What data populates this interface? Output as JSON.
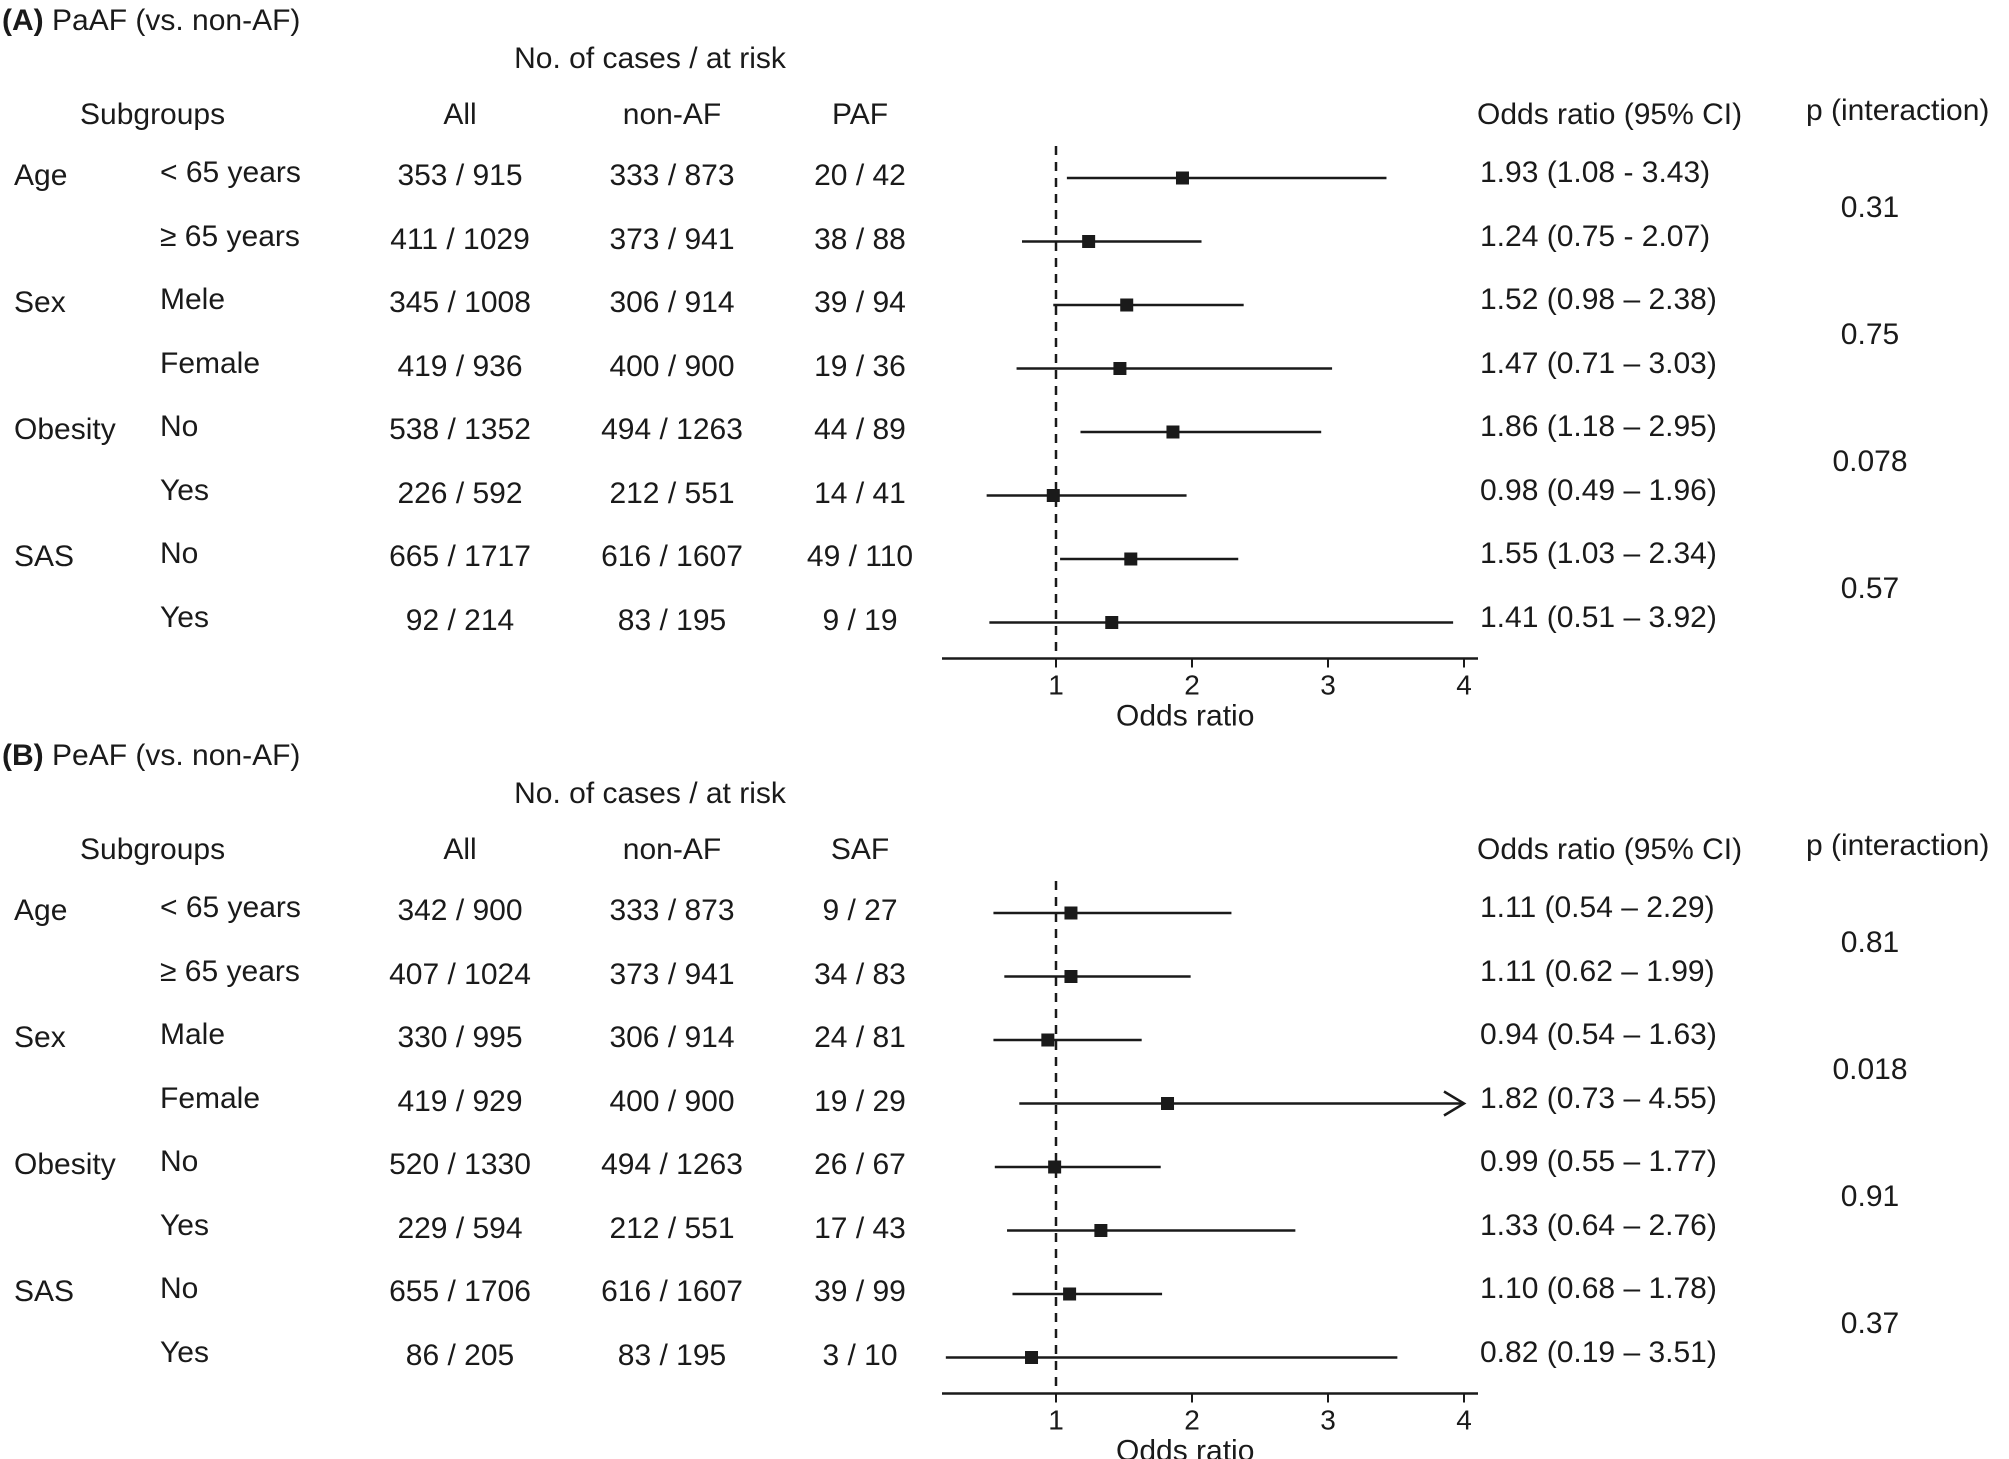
{
  "chart_data": [
    {
      "type": "forest",
      "panel_label": "(A)",
      "title": "PaAF (vs. non-AF)",
      "group_header": "No. of cases / at risk",
      "columns": {
        "subgroups": "Subgroups",
        "all": "All",
        "ref": "non-AF",
        "exp": "PAF",
        "or": "Odds ratio (95% CI)",
        "p": "p (interaction)"
      },
      "xlabel": "Odds ratio",
      "xlim": [
        0.15,
        4.15
      ],
      "xticks": [
        "1",
        "2",
        "3",
        "4"
      ],
      "reference_line": 1,
      "rows": [
        {
          "group": "Age",
          "sub": "< 65 years",
          "all": "353 / 915",
          "ref": "333 / 873",
          "exp": "20 / 42",
          "or_text": "1.93 (1.08 - 3.43)",
          "or": 1.93,
          "lo": 1.08,
          "hi": 3.43
        },
        {
          "group": "",
          "sub": "≥ 65 years",
          "all": "411 / 1029",
          "ref": "373 / 941",
          "exp": "38 / 88",
          "or_text": "1.24 (0.75 - 2.07)",
          "or": 1.24,
          "lo": 0.75,
          "hi": 2.07
        },
        {
          "group": "Sex",
          "sub": "Mele",
          "all": "345 / 1008",
          "ref": "306 / 914",
          "exp": "39 / 94",
          "or_text": "1.52 (0.98 – 2.38)",
          "or": 1.52,
          "lo": 0.98,
          "hi": 2.38
        },
        {
          "group": "",
          "sub": "Female",
          "all": "419 / 936",
          "ref": "400 / 900",
          "exp": "19 / 36",
          "or_text": "1.47 (0.71 – 3.03)",
          "or": 1.47,
          "lo": 0.71,
          "hi": 3.03
        },
        {
          "group": "Obesity",
          "sub": "No",
          "all": "538 / 1352",
          "ref": "494 / 1263",
          "exp": "44 / 89",
          "or_text": "1.86 (1.18 – 2.95)",
          "or": 1.86,
          "lo": 1.18,
          "hi": 2.95
        },
        {
          "group": "",
          "sub": "Yes",
          "all": "226 / 592",
          "ref": "212 / 551",
          "exp": "14 / 41",
          "or_text": "0.98 (0.49 – 1.96)",
          "or": 0.98,
          "lo": 0.49,
          "hi": 1.96
        },
        {
          "group": "SAS",
          "sub": "No",
          "all": "665 / 1717",
          "ref": "616 / 1607",
          "exp": "49 / 110",
          "or_text": "1.55 (1.03 – 2.34)",
          "or": 1.55,
          "lo": 1.03,
          "hi": 2.34
        },
        {
          "group": "",
          "sub": "Yes",
          "all": "92 / 214",
          "ref": "83 / 195",
          "exp": "9 / 19",
          "or_text": "1.41 (0.51 – 3.92)",
          "or": 1.41,
          "lo": 0.51,
          "hi": 3.92
        }
      ],
      "p_interaction": [
        "0.31",
        "0.75",
        "0.078",
        "0.57"
      ]
    },
    {
      "type": "forest",
      "panel_label": "(B)",
      "title": "PeAF (vs. non-AF)",
      "group_header": "No. of cases / at risk",
      "columns": {
        "subgroups": "Subgroups",
        "all": "All",
        "ref": "non-AF",
        "exp": "SAF",
        "or": "Odds ratio (95% CI)",
        "p": "p (interaction)"
      },
      "xlabel": "Odds ratio",
      "xlim": [
        0.15,
        4.15
      ],
      "xticks": [
        "1",
        "2",
        "3",
        "4"
      ],
      "reference_line": 1,
      "rows": [
        {
          "group": "Age",
          "sub": "< 65 years",
          "all": "342 / 900",
          "ref": "333 / 873",
          "exp": "9 / 27",
          "or_text": "1.11 (0.54 – 2.29)",
          "or": 1.11,
          "lo": 0.54,
          "hi": 2.29
        },
        {
          "group": "",
          "sub": "≥ 65 years",
          "all": "407 / 1024",
          "ref": "373 / 941",
          "exp": "34 / 83",
          "or_text": "1.11 (0.62 – 1.99)",
          "or": 1.11,
          "lo": 0.62,
          "hi": 1.99
        },
        {
          "group": "Sex",
          "sub": "Male",
          "all": "330 / 995",
          "ref": "306 / 914",
          "exp": "24 / 81",
          "or_text": "0.94 (0.54 – 1.63)",
          "or": 0.94,
          "lo": 0.54,
          "hi": 1.63
        },
        {
          "group": "",
          "sub": "Female",
          "all": "419 / 929",
          "ref": "400 / 900",
          "exp": "19 / 29",
          "or_text": "1.82 (0.73 – 4.55)",
          "or": 1.82,
          "lo": 0.73,
          "hi": 4.55,
          "arrow": true
        },
        {
          "group": "Obesity",
          "sub": "No",
          "all": "520 / 1330",
          "ref": "494 / 1263",
          "exp": "26 / 67",
          "or_text": "0.99 (0.55 – 1.77)",
          "or": 0.99,
          "lo": 0.55,
          "hi": 1.77
        },
        {
          "group": "",
          "sub": "Yes",
          "all": "229 / 594",
          "ref": "212 / 551",
          "exp": "17 / 43",
          "or_text": "1.33 (0.64 – 2.76)",
          "or": 1.33,
          "lo": 0.64,
          "hi": 2.76
        },
        {
          "group": "SAS",
          "sub": "No",
          "all": "655 / 1706",
          "ref": "616 / 1607",
          "exp": "39 / 99",
          "or_text": "1.10 (0.68 – 1.78)",
          "or": 1.1,
          "lo": 0.68,
          "hi": 1.78
        },
        {
          "group": "",
          "sub": "Yes",
          "all": "86 / 205",
          "ref": "83 / 195",
          "exp": "3 / 10",
          "or_text": "0.82 (0.19 – 3.51)",
          "or": 0.82,
          "lo": 0.19,
          "hi": 3.51
        }
      ],
      "p_interaction": [
        "0.81",
        "0.018",
        "0.91",
        "0.37"
      ]
    }
  ]
}
